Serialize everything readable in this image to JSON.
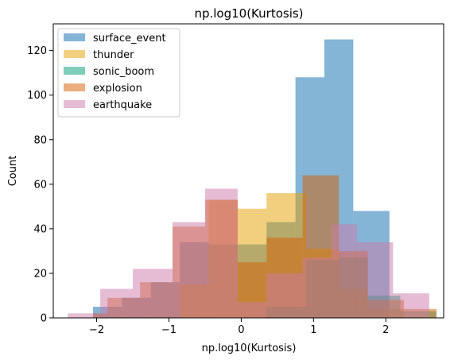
{
  "chart_data": {
    "type": "bar",
    "title": "np.log10(Kurtosis)",
    "xlabel": "np.log10(Kurtosis)",
    "ylabel": "Count",
    "xlim": [
      -2.6,
      2.8
    ],
    "ylim": [
      0,
      132
    ],
    "xticks": [
      -2,
      -1,
      0,
      1,
      2
    ],
    "yticks": [
      0,
      20,
      40,
      60,
      80,
      100,
      120
    ],
    "grid": false,
    "legend_position": "top-left",
    "series": [
      {
        "name": "surface_event",
        "color": "#1f77b4",
        "alpha": 0.55,
        "bins": [
          {
            "x0": -2.05,
            "x1": -1.65,
            "count": 5
          },
          {
            "x0": -1.65,
            "x1": -1.25,
            "count": 9
          },
          {
            "x0": -1.25,
            "x1": -0.85,
            "count": 16
          },
          {
            "x0": -0.85,
            "x1": -0.45,
            "count": 34
          },
          {
            "x0": -0.45,
            "x1": -0.05,
            "count": 33
          },
          {
            "x0": -0.05,
            "x1": 0.35,
            "count": 33
          },
          {
            "x0": 0.35,
            "x1": 0.75,
            "count": 43
          },
          {
            "x0": 0.75,
            "x1": 1.15,
            "count": 108
          },
          {
            "x0": 1.15,
            "x1": 1.55,
            "count": 125
          },
          {
            "x0": 1.55,
            "x1": 2.05,
            "count": 48
          }
        ]
      },
      {
        "name": "thunder",
        "color": "#e69f00",
        "alpha": 0.5,
        "bins": [
          {
            "x0": -0.85,
            "x1": -0.45,
            "count": 15
          },
          {
            "x0": -0.45,
            "x1": -0.05,
            "count": 53
          },
          {
            "x0": -0.05,
            "x1": 0.35,
            "count": 49
          },
          {
            "x0": 0.35,
            "x1": 0.9,
            "count": 56
          },
          {
            "x0": 0.9,
            "x1": 1.35,
            "count": 31
          },
          {
            "x0": 1.35,
            "x1": 1.75,
            "count": 13
          },
          {
            "x0": 1.75,
            "x1": 2.25,
            "count": 4
          }
        ]
      },
      {
        "name": "sonic_boom",
        "color": "#009e73",
        "alpha": 0.5,
        "bins": [
          {
            "x0": 0.35,
            "x1": 0.9,
            "count": 5
          },
          {
            "x0": 0.9,
            "x1": 1.35,
            "count": 26
          },
          {
            "x0": 1.35,
            "x1": 1.75,
            "count": 27
          },
          {
            "x0": 1.75,
            "x1": 2.2,
            "count": 10
          },
          {
            "x0": 2.2,
            "x1": 2.7,
            "count": 3
          }
        ]
      },
      {
        "name": "explosion",
        "color": "#d55e00",
        "alpha": 0.5,
        "bins": [
          {
            "x0": -2.05,
            "x1": -1.85,
            "count": 2
          },
          {
            "x0": -1.85,
            "x1": -1.4,
            "count": 9
          },
          {
            "x0": -1.4,
            "x1": -0.95,
            "count": 16
          },
          {
            "x0": -0.95,
            "x1": -0.5,
            "count": 41
          },
          {
            "x0": -0.5,
            "x1": -0.05,
            "count": 53
          },
          {
            "x0": -0.05,
            "x1": 0.35,
            "count": 25
          },
          {
            "x0": 0.35,
            "x1": 0.85,
            "count": 36
          },
          {
            "x0": 0.85,
            "x1": 1.35,
            "count": 64
          },
          {
            "x0": 1.35,
            "x1": 1.75,
            "count": 30
          },
          {
            "x0": 1.75,
            "x1": 2.25,
            "count": 8
          },
          {
            "x0": 2.25,
            "x1": 2.7,
            "count": 4
          }
        ]
      },
      {
        "name": "earthquake",
        "color": "#cc79a7",
        "alpha": 0.5,
        "bins": [
          {
            "x0": -2.4,
            "x1": -1.95,
            "count": 2
          },
          {
            "x0": -1.95,
            "x1": -1.5,
            "count": 13
          },
          {
            "x0": -1.5,
            "x1": -0.95,
            "count": 22
          },
          {
            "x0": -0.95,
            "x1": -0.5,
            "count": 43
          },
          {
            "x0": -0.5,
            "x1": -0.05,
            "count": 58
          },
          {
            "x0": -0.05,
            "x1": 0.35,
            "count": 7
          },
          {
            "x0": 0.35,
            "x1": 0.85,
            "count": 20
          },
          {
            "x0": 0.85,
            "x1": 1.25,
            "count": 27
          },
          {
            "x0": 1.25,
            "x1": 1.6,
            "count": 42
          },
          {
            "x0": 1.6,
            "x1": 2.1,
            "count": 34
          },
          {
            "x0": 2.1,
            "x1": 2.6,
            "count": 11
          }
        ]
      }
    ]
  }
}
